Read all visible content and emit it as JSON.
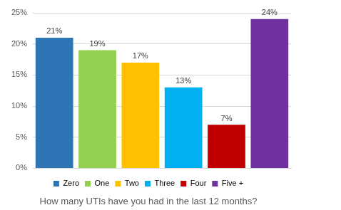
{
  "chart_data": {
    "type": "bar",
    "xlabel": "How many UTIs have you had in the last 12 months?",
    "categories": [
      "Zero",
      "One",
      "Two",
      "Three",
      "Four",
      "Five +"
    ],
    "values": [
      21,
      19,
      17,
      13,
      7,
      24
    ],
    "value_labels": [
      "21%",
      "19%",
      "17%",
      "13%",
      "7%",
      "24%"
    ],
    "colors": [
      "#2e75b6",
      "#92d050",
      "#ffc000",
      "#00b0f0",
      "#c00000",
      "#7030a0"
    ],
    "ylim": [
      0,
      25
    ],
    "yticks": [
      {
        "value": 0,
        "label": "0%"
      },
      {
        "value": 5,
        "label": "5%"
      },
      {
        "value": 10,
        "label": "10%"
      },
      {
        "value": 15,
        "label": "15%"
      },
      {
        "value": 20,
        "label": "20%"
      },
      {
        "value": 25,
        "label": "25%"
      }
    ],
    "grid": true,
    "legend": "bottom",
    "data_labels": true,
    "tick_labels": "y"
  }
}
